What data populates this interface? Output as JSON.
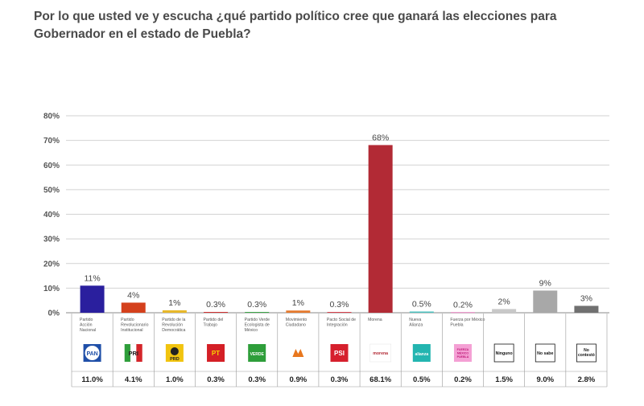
{
  "title": "Por lo que usted ve y escucha ¿qué partido político cree que ganará las elecciones para Gobernador en el estado de Puebla?",
  "chart_data": {
    "type": "bar",
    "ylim": [
      0,
      80
    ],
    "yticks": [
      "0%",
      "10%",
      "20%",
      "30%",
      "40%",
      "50%",
      "60%",
      "70%",
      "80%"
    ],
    "grid": true,
    "categories": [
      [
        "Partido",
        "Acción",
        "Nacional"
      ],
      [
        "Partido",
        "Revolucionario",
        "Institucional"
      ],
      [
        "Partido de la",
        "Revolución",
        "Democrática"
      ],
      [
        "Partido del",
        "Trabajo"
      ],
      [
        "Partido Verde",
        "Ecologista de",
        "México"
      ],
      [
        "Movimiento",
        "Ciudadano"
      ],
      [
        "Pacto Social de",
        "Integración"
      ],
      [
        "Morena"
      ],
      [
        "Nueva",
        "Alianza"
      ],
      [
        "Fuerza por México",
        "Puebla"
      ],
      [],
      [],
      []
    ],
    "values": [
      11.0,
      4.1,
      1.0,
      0.3,
      0.3,
      0.9,
      0.3,
      68.1,
      0.5,
      0.2,
      1.5,
      9.0,
      2.8
    ],
    "bar_labels": [
      "11%",
      "4%",
      "1%",
      "0.3%",
      "0.3%",
      "1%",
      "0.3%",
      "68%",
      "0.5%",
      "0.2%",
      "2%",
      "9%",
      "3%"
    ],
    "table_values": [
      "11.0%",
      "4.1%",
      "1.0%",
      "0.3%",
      "0.3%",
      "0.9%",
      "0.3%",
      "68.1%",
      "0.5%",
      "0.2%",
      "1.5%",
      "9.0%",
      "2.8%"
    ],
    "colors": [
      "#2a1f9e",
      "#d4401c",
      "#e8b82a",
      "#cc2020",
      "#2e9e3a",
      "#e57a2e",
      "#d6323e",
      "#b22a35",
      "#4fc3c0",
      "#e060b0",
      "#c8c8c8",
      "#a8a8a8",
      "#707070"
    ],
    "logos": [
      {
        "icon": "pan-logo-icon",
        "text": "PAN",
        "bg": "#1f4fa8",
        "fg": "#ffffff"
      },
      {
        "icon": "pri-logo-icon",
        "text": "PRI",
        "bg": "#ffffff",
        "fg": "#d4252a"
      },
      {
        "icon": "prd-logo-icon",
        "text": "PRD",
        "bg": "#f1c40f",
        "fg": "#222222"
      },
      {
        "icon": "pt-logo-icon",
        "text": "PT",
        "bg": "#d41f26",
        "fg": "#f7d400"
      },
      {
        "icon": "verde-logo-icon",
        "text": "VERDE",
        "bg": "#2e9e3a",
        "fg": "#ffffff"
      },
      {
        "icon": "mc-logo-icon",
        "text": "",
        "bg": "#ffffff",
        "fg": "#e8771e"
      },
      {
        "icon": "psi-logo-icon",
        "text": "PSI",
        "bg": "#d6202d",
        "fg": "#ffffff"
      },
      {
        "icon": "morena-logo-icon",
        "text": "morena",
        "bg": "#ffffff",
        "fg": "#b22a35"
      },
      {
        "icon": "nueva-alianza-logo-icon",
        "text": "alianza",
        "bg": "#23b5b0",
        "fg": "#ffffff"
      },
      {
        "icon": "fuerza-mexico-logo-icon",
        "text": "FUERZA MÉXICO PUEBLA",
        "bg": "#f4a0d4",
        "fg": "#c01878"
      },
      {
        "icon": "ninguno-box-icon",
        "text": "Ninguno",
        "bg": "#ffffff",
        "fg": "#111111"
      },
      {
        "icon": "no-sabe-box-icon",
        "text": "No sabe",
        "bg": "#ffffff",
        "fg": "#111111"
      },
      {
        "icon": "no-contesto-box-icon",
        "text": "No contestó",
        "bg": "#ffffff",
        "fg": "#111111"
      }
    ]
  }
}
